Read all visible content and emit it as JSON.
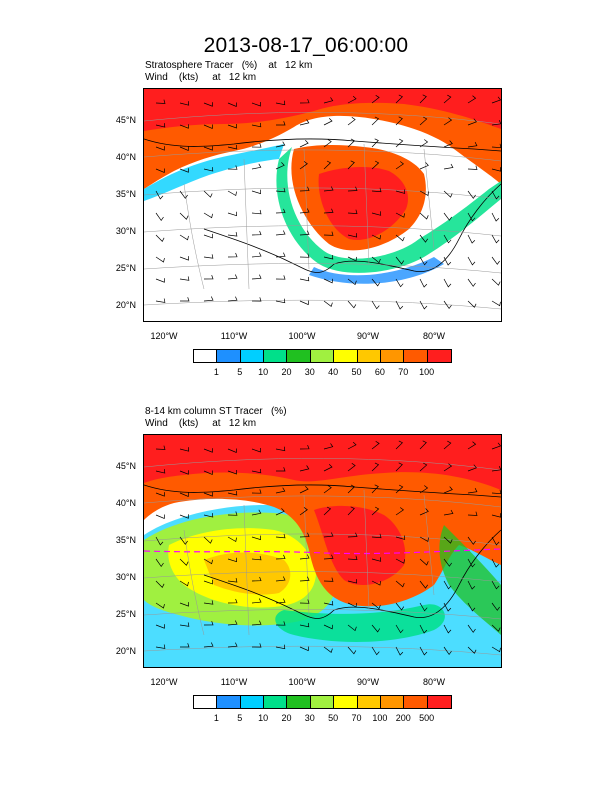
{
  "title": "2013-08-17_06:00:00",
  "panels": [
    {
      "label_line1": "Stratosphere Tracer   (%)    at   12 km",
      "label_line2": "Wind    (kts)     at   12 km",
      "lat_labels": [
        "45°N",
        "40°N",
        "35°N",
        "30°N",
        "25°N",
        "20°N"
      ],
      "lon_labels": [
        "120°W",
        "110°W",
        "100°W",
        "90°W",
        "80°W"
      ],
      "colorbar": {
        "colors": [
          "#ffffff",
          "#1e90ff",
          "#00cfff",
          "#00e08a",
          "#20c020",
          "#a0f040",
          "#ffff00",
          "#ffc800",
          "#ff9600",
          "#ff5a00",
          "#ff1e1e"
        ],
        "labels": [
          "1",
          "5",
          "10",
          "20",
          "30",
          "40",
          "50",
          "60",
          "70",
          "100"
        ]
      }
    },
    {
      "label_line1": "8-14 km column ST Tracer   (%)",
      "label_line2": "Wind    (kts)     at   12 km",
      "lat_labels": [
        "45°N",
        "40°N",
        "35°N",
        "30°N",
        "25°N",
        "20°N"
      ],
      "lon_labels": [
        "120°W",
        "110°W",
        "100°W",
        "90°W",
        "80°W"
      ],
      "colorbar": {
        "colors": [
          "#ffffff",
          "#1e90ff",
          "#00cfff",
          "#00e08a",
          "#20c020",
          "#a0f040",
          "#ffff00",
          "#ffc800",
          "#ff9600",
          "#ff5a00",
          "#ff1e1e"
        ],
        "labels": [
          "1",
          "5",
          "10",
          "20",
          "30",
          "50",
          "70",
          "100",
          "200",
          "500"
        ]
      }
    }
  ]
}
